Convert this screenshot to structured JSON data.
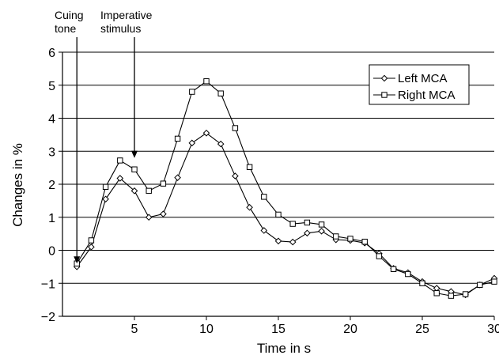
{
  "chart_data": {
    "type": "line",
    "title": "",
    "xlabel": "Time in s",
    "ylabel": "Changes in %",
    "xlim": [
      0,
      30
    ],
    "ylim": [
      -2,
      6
    ],
    "x_ticks": [
      5,
      10,
      15,
      20,
      25,
      30
    ],
    "y_ticks": [
      -2,
      -1,
      0,
      1,
      2,
      3,
      4,
      5,
      6
    ],
    "x_tick_labels": [
      "5",
      "10",
      "15",
      "20",
      "25",
      "30"
    ],
    "y_tick_labels": [
      "−2",
      "−1",
      "0",
      "1",
      "2",
      "3",
      "4",
      "5",
      "6"
    ],
    "grid": "horizontal",
    "legend_position": "top-right",
    "x": [
      1,
      2,
      3,
      4,
      5,
      6,
      7,
      8,
      9,
      10,
      11,
      12,
      13,
      14,
      15,
      16,
      17,
      18,
      19,
      20,
      21,
      22,
      23,
      24,
      25,
      26,
      27,
      28,
      29,
      30
    ],
    "series": [
      {
        "name": "Left MCA",
        "marker": "diamond",
        "values": [
          -0.5,
          0.1,
          1.55,
          2.18,
          1.8,
          1.0,
          1.1,
          2.2,
          3.25,
          3.55,
          3.22,
          2.25,
          1.3,
          0.6,
          0.28,
          0.25,
          0.52,
          0.58,
          0.32,
          0.3,
          0.22,
          -0.1,
          -0.55,
          -0.68,
          -0.95,
          -1.15,
          -1.25,
          -1.35,
          -1.05,
          -0.85
        ]
      },
      {
        "name": "Right MCA",
        "marker": "square",
        "values": [
          -0.4,
          0.3,
          1.92,
          2.72,
          2.45,
          1.8,
          2.02,
          3.38,
          4.8,
          5.12,
          4.75,
          3.7,
          2.52,
          1.62,
          1.08,
          0.8,
          0.84,
          0.78,
          0.42,
          0.35,
          0.26,
          -0.18,
          -0.57,
          -0.72,
          -1.0,
          -1.3,
          -1.38,
          -1.33,
          -1.05,
          -0.95
        ]
      }
    ],
    "annotations": [
      {
        "text_lines": [
          "Cuing",
          "tone"
        ],
        "arrow_x": 1,
        "arrow_to_y": -0.45
      },
      {
        "text_lines": [
          "Imperative",
          "stimulus"
        ],
        "arrow_x": 5,
        "arrow_to_y": 2.75
      }
    ]
  }
}
